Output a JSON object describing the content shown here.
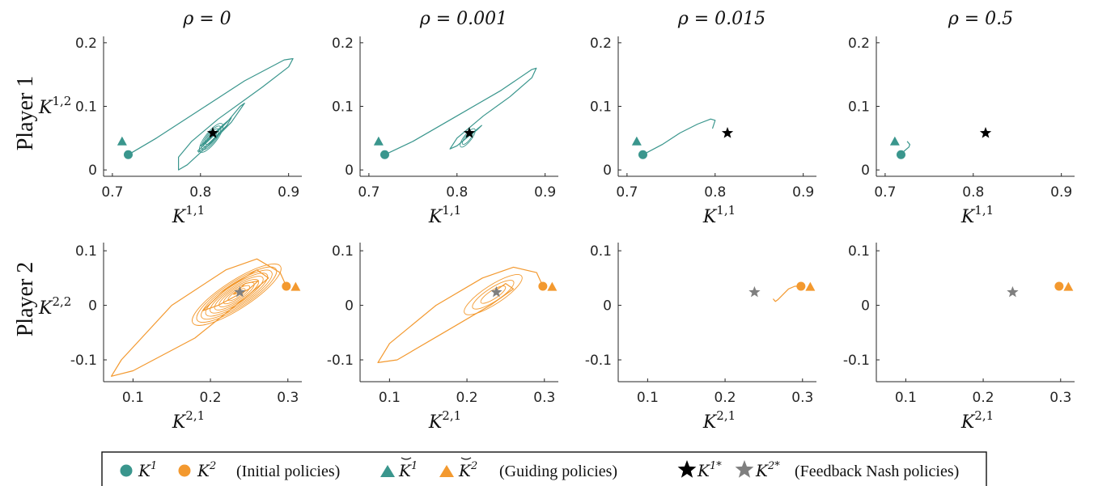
{
  "rows": [
    {
      "label": "Player 1",
      "ylabel": "K",
      "ysup": "1,2",
      "xlabel": "K",
      "xsup": "1,1"
    },
    {
      "label": "Player 2",
      "ylabel": "K",
      "ysup": "2,2",
      "xlabel": "K",
      "xsup": "2,1"
    }
  ],
  "columns": [
    {
      "title": "ρ = 0"
    },
    {
      "title": "ρ = 0.001"
    },
    {
      "title": "ρ = 0.015"
    },
    {
      "title": "ρ = 0.5"
    }
  ],
  "legend": {
    "k1": "K",
    "k1_sup": "1",
    "k2": "K",
    "k2_sup": "2",
    "initial": "(Initial policies)",
    "kt1": "K",
    "kt1_sup": "1",
    "kt2": "K",
    "kt2_sup": "2",
    "guiding": "(Guiding policies)",
    "ks1": "K",
    "ks1_sup": "1*",
    "ks2": "K",
    "ks2_sup": "2*",
    "nash": "(Feedback Nash policies)"
  },
  "colors": {
    "teal": "#3a968d",
    "orange": "#f3992f",
    "nash1": "#000000",
    "nash2": "#7f7f7f"
  },
  "chart_data": [
    {
      "type": "line",
      "row": "Player 1",
      "xlim": [
        0.69,
        0.915
      ],
      "ylim": [
        -0.01,
        0.21
      ],
      "xticks": [
        0.7,
        0.8,
        0.9
      ],
      "yticks": [
        0,
        0.1,
        0.2
      ],
      "xtick_labels": [
        "0.7",
        "0.8",
        "0.9"
      ],
      "ytick_labels": [
        "0",
        "0.1",
        "0.2"
      ],
      "initial": [
        0.718,
        0.024
      ],
      "guiding": [
        0.711,
        0.045
      ],
      "nash": [
        0.814,
        0.058
      ],
      "panels": [
        {
          "rho": "0",
          "trajectory": [
            [
              0.718,
              0.024
            ],
            [
              0.75,
              0.05
            ],
            [
              0.8,
              0.095
            ],
            [
              0.85,
              0.14
            ],
            [
              0.895,
              0.173
            ],
            [
              0.905,
              0.175
            ],
            [
              0.9,
              0.162
            ],
            [
              0.87,
              0.13
            ],
            [
              0.82,
              0.08
            ],
            [
              0.79,
              0.045
            ],
            [
              0.775,
              0.02
            ],
            [
              0.775,
              0
            ],
            [
              0.785,
              0.008
            ],
            [
              0.81,
              0.04
            ],
            [
              0.835,
              0.075
            ],
            [
              0.85,
              0.105
            ],
            [
              0.845,
              0.1
            ],
            [
              0.83,
              0.075
            ],
            [
              0.812,
              0.05
            ],
            [
              0.797,
              0.03
            ],
            [
              0.798,
              0.028
            ],
            [
              0.812,
              0.045
            ],
            [
              0.83,
              0.07
            ],
            [
              0.835,
              0.082
            ],
            [
              0.825,
              0.07
            ],
            [
              0.812,
              0.053
            ],
            [
              0.8,
              0.038
            ],
            [
              0.805,
              0.042
            ],
            [
              0.814,
              0.055
            ],
            [
              0.822,
              0.064
            ],
            [
              0.815,
              0.058
            ]
          ],
          "spiral_rings": 4
        },
        {
          "rho": "0.001",
          "trajectory": [
            [
              0.718,
              0.024
            ],
            [
              0.75,
              0.045
            ],
            [
              0.8,
              0.085
            ],
            [
              0.85,
              0.125
            ],
            [
              0.885,
              0.158
            ],
            [
              0.89,
              0.16
            ],
            [
              0.885,
              0.145
            ],
            [
              0.86,
              0.115
            ],
            [
              0.83,
              0.085
            ],
            [
              0.8,
              0.05
            ],
            [
              0.792,
              0.033
            ],
            [
              0.8,
              0.038
            ],
            [
              0.815,
              0.055
            ],
            [
              0.828,
              0.07
            ],
            [
              0.822,
              0.062
            ],
            [
              0.81,
              0.05
            ],
            [
              0.814,
              0.057
            ]
          ],
          "spiral_rings": 2
        },
        {
          "rho": "0.015",
          "trajectory": [
            [
              0.718,
              0.024
            ],
            [
              0.74,
              0.04
            ],
            [
              0.76,
              0.058
            ],
            [
              0.78,
              0.072
            ],
            [
              0.795,
              0.08
            ],
            [
              0.8,
              0.078
            ],
            [
              0.797,
              0.065
            ]
          ],
          "spiral_rings": 0
        },
        {
          "rho": "0.5",
          "trajectory": [
            [
              0.718,
              0.024
            ],
            [
              0.722,
              0.03
            ],
            [
              0.727,
              0.036
            ],
            [
              0.728,
              0.04
            ],
            [
              0.725,
              0.045
            ]
          ],
          "spiral_rings": 0
        }
      ]
    },
    {
      "type": "line",
      "row": "Player 2",
      "xlim": [
        0.062,
        0.318
      ],
      "ylim": [
        -0.14,
        0.115
      ],
      "xticks": [
        0.1,
        0.2,
        0.3
      ],
      "yticks": [
        -0.1,
        0,
        0.1
      ],
      "xtick_labels": [
        "0.1",
        "0.2",
        "0.3"
      ],
      "ytick_labels": [
        "-0.1",
        "0",
        "0.1"
      ],
      "initial": [
        0.298,
        0.035
      ],
      "guiding": [
        0.31,
        0.034
      ],
      "nash": [
        0.238,
        0.024
      ],
      "panels": [
        {
          "rho": "0",
          "trajectory": [
            [
              0.298,
              0.035
            ],
            [
              0.29,
              0.06
            ],
            [
              0.26,
              0.085
            ],
            [
              0.22,
              0.065
            ],
            [
              0.15,
              0.0
            ],
            [
              0.085,
              -0.1
            ],
            [
              0.072,
              -0.13
            ],
            [
              0.1,
              -0.12
            ],
            [
              0.18,
              -0.06
            ],
            [
              0.25,
              0.02
            ],
            [
              0.275,
              0.05
            ],
            [
              0.26,
              0.065
            ],
            [
              0.22,
              0.03
            ],
            [
              0.19,
              -0.01
            ],
            [
              0.21,
              0.0
            ],
            [
              0.25,
              0.03
            ],
            [
              0.262,
              0.045
            ],
            [
              0.245,
              0.04
            ],
            [
              0.23,
              0.02
            ],
            [
              0.24,
              0.024
            ]
          ],
          "ellipse_rings": 9
        },
        {
          "rho": "0.001",
          "trajectory": [
            [
              0.298,
              0.035
            ],
            [
              0.29,
              0.06
            ],
            [
              0.26,
              0.07
            ],
            [
              0.22,
              0.05
            ],
            [
              0.16,
              0.0
            ],
            [
              0.1,
              -0.07
            ],
            [
              0.085,
              -0.105
            ],
            [
              0.11,
              -0.1
            ],
            [
              0.17,
              -0.05
            ],
            [
              0.23,
              0.0
            ],
            [
              0.26,
              0.03
            ],
            [
              0.25,
              0.04
            ],
            [
              0.235,
              0.025
            ],
            [
              0.24,
              0.024
            ]
          ],
          "ellipse_rings": 3
        },
        {
          "rho": "0.015",
          "trajectory": [
            [
              0.298,
              0.035
            ],
            [
              0.29,
              0.035
            ],
            [
              0.282,
              0.03
            ],
            [
              0.275,
              0.02
            ],
            [
              0.268,
              0.01
            ],
            [
              0.265,
              0.007
            ],
            [
              0.262,
              0.012
            ]
          ],
          "ellipse_rings": 0
        },
        {
          "rho": "0.5",
          "trajectory": [],
          "ellipse_rings": 0
        }
      ]
    }
  ]
}
